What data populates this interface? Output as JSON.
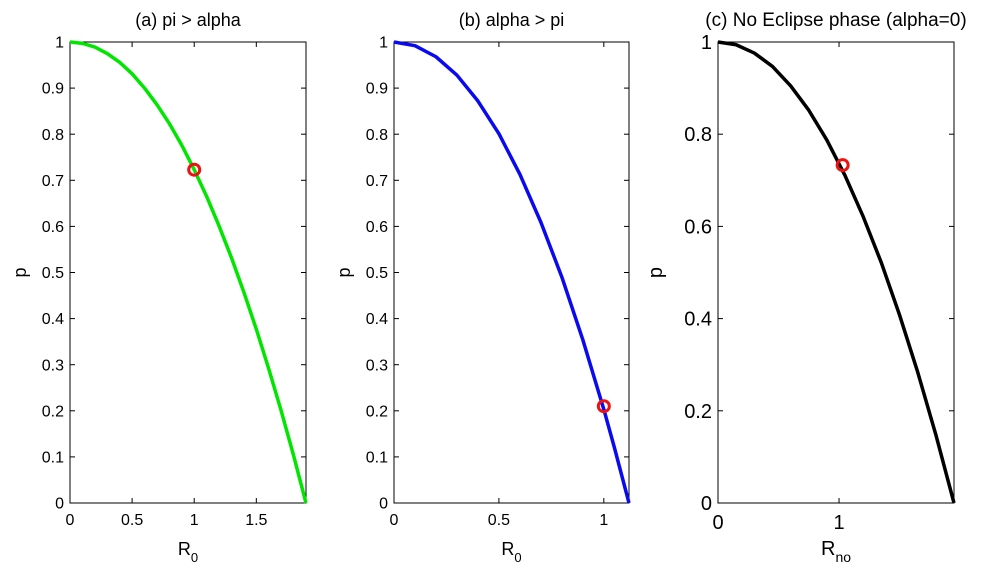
{
  "chart_data": [
    {
      "type": "line",
      "title": "(a) pi > alpha",
      "xlabel": "R",
      "xlabel_sub": "0",
      "ylabel": "p",
      "xlim": [
        0,
        1.9
      ],
      "ylim": [
        0,
        1
      ],
      "xticks": [
        0,
        0.5,
        1,
        1.5
      ],
      "xtick_labels": [
        "0",
        "0.5",
        "1",
        "1.5"
      ],
      "yticks": [
        0,
        0.1,
        0.2,
        0.3,
        0.4,
        0.5,
        0.6,
        0.7,
        0.8,
        0.9,
        1
      ],
      "ytick_labels": [
        "0",
        "0.1",
        "0.2",
        "0.3",
        "0.4",
        "0.5",
        "0.6",
        "0.7",
        "0.8",
        "0.9",
        "1"
      ],
      "grid": false,
      "series": [
        {
          "color": "#00e600",
          "x": [
            0,
            0.1,
            0.2,
            0.3,
            0.4,
            0.5,
            0.6,
            0.7,
            0.8,
            0.9,
            1.0,
            1.1,
            1.2,
            1.3,
            1.4,
            1.5,
            1.6,
            1.7,
            1.8,
            1.9
          ],
          "y": [
            1,
            0.997,
            0.989,
            0.975,
            0.956,
            0.931,
            0.9,
            0.864,
            0.823,
            0.776,
            0.723,
            0.665,
            0.601,
            0.532,
            0.457,
            0.377,
            0.291,
            0.2,
            0.103,
            0
          ]
        }
      ],
      "marker": {
        "x": 1,
        "y": 0.723,
        "color": "#ee1111"
      }
    },
    {
      "type": "line",
      "title": "(b) alpha > pi",
      "xlabel": "R",
      "xlabel_sub": "0",
      "ylabel": "p",
      "xlim": [
        0,
        1.12
      ],
      "ylim": [
        0,
        1
      ],
      "xticks": [
        0,
        0.5,
        1
      ],
      "xtick_labels": [
        "0",
        "0.5",
        "1"
      ],
      "yticks": [
        0,
        0.1,
        0.2,
        0.3,
        0.4,
        0.5,
        0.6,
        0.7,
        0.8,
        0.9,
        1
      ],
      "ytick_labels": [
        "0",
        "0.1",
        "0.2",
        "0.3",
        "0.4",
        "0.5",
        "0.6",
        "0.7",
        "0.8",
        "0.9",
        "1"
      ],
      "grid": false,
      "series": [
        {
          "color": "#0a0af0",
          "x": [
            0,
            0.1,
            0.2,
            0.3,
            0.4,
            0.5,
            0.6,
            0.7,
            0.8,
            0.9,
            1.0,
            1.05,
            1.12
          ],
          "y": [
            1,
            0.992,
            0.968,
            0.928,
            0.872,
            0.801,
            0.713,
            0.609,
            0.49,
            0.354,
            0.203,
            0.121,
            0
          ]
        }
      ],
      "marker": {
        "x": 1,
        "y": 0.21,
        "color": "#ee1111"
      }
    },
    {
      "type": "line",
      "title": "(c) No Eclipse phase (alpha=0)",
      "xlabel": "R",
      "xlabel_sub": "no",
      "ylabel": "p",
      "xlim": [
        0,
        1.95
      ],
      "ylim": [
        0,
        1
      ],
      "xticks": [
        0,
        1
      ],
      "xtick_labels": [
        "0",
        "1"
      ],
      "yticks": [
        0,
        0.2,
        0.4,
        0.6,
        0.8,
        1
      ],
      "ytick_labels": [
        "0",
        "0.2",
        "0.4",
        "0.6",
        "0.8",
        "1"
      ],
      "grid": false,
      "series": [
        {
          "color": "#000000",
          "x": [
            0,
            0.15,
            0.3,
            0.45,
            0.6,
            0.75,
            0.9,
            1.05,
            1.2,
            1.35,
            1.5,
            1.65,
            1.8,
            1.95
          ],
          "y": [
            1,
            0.994,
            0.976,
            0.947,
            0.905,
            0.852,
            0.787,
            0.71,
            0.621,
            0.521,
            0.408,
            0.284,
            0.148,
            0
          ]
        }
      ],
      "marker": {
        "x": 1.03,
        "y": 0.733,
        "color": "#ee1111"
      }
    }
  ]
}
